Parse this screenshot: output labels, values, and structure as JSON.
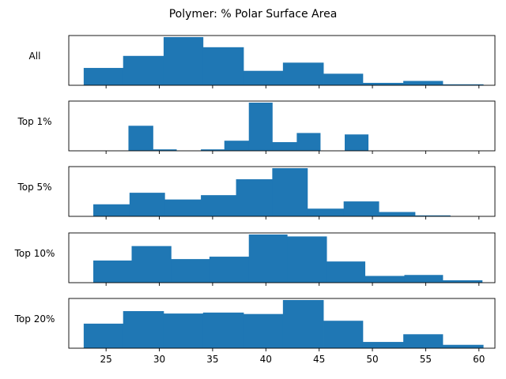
{
  "chart_data": {
    "type": "bar",
    "title": "Polymer: % Polar Surface Area",
    "xlabel": "",
    "ylabel": "",
    "xlim": [
      21.5,
      61.5
    ],
    "xticks": [
      "25",
      "30",
      "35",
      "40",
      "45",
      "50",
      "55",
      "60"
    ],
    "color": "#1f77b4",
    "grid": false,
    "panels": [
      {
        "label": "All",
        "edges": [
          22.9,
          26.6,
          30.4,
          34.1,
          37.9,
          41.6,
          45.4,
          49.1,
          52.9,
          56.6,
          60.4
        ],
        "values": [
          0.36,
          0.61,
          1.0,
          0.79,
          0.3,
          0.47,
          0.24,
          0.05,
          0.09,
          0.02
        ]
      },
      {
        "label": "Top 1%",
        "edges": [
          27.1,
          29.4,
          31.6,
          33.9,
          36.1,
          38.4,
          40.6,
          42.9,
          45.1,
          47.4,
          49.6
        ],
        "values": [
          0.52,
          0.03,
          0.0,
          0.03,
          0.21,
          1.0,
          0.18,
          0.37,
          0.0,
          0.34
        ]
      },
      {
        "label": "Top 5%",
        "edges": [
          23.8,
          27.2,
          30.5,
          33.9,
          37.2,
          40.6,
          43.9,
          47.3,
          50.6,
          54.0,
          57.3
        ],
        "values": [
          0.25,
          0.49,
          0.35,
          0.44,
          0.77,
          1.0,
          0.16,
          0.31,
          0.09,
          0.02
        ]
      },
      {
        "label": "Top 10%",
        "edges": [
          23.8,
          27.4,
          31.1,
          34.7,
          38.4,
          42.0,
          45.7,
          49.3,
          53.0,
          56.6,
          60.3
        ],
        "values": [
          0.46,
          0.76,
          0.49,
          0.54,
          1.0,
          0.96,
          0.44,
          0.14,
          0.16,
          0.05
        ]
      },
      {
        "label": "Top 20%",
        "edges": [
          22.9,
          26.6,
          30.4,
          34.1,
          37.9,
          41.6,
          45.4,
          49.1,
          52.9,
          56.6,
          60.4
        ],
        "values": [
          0.51,
          0.77,
          0.72,
          0.74,
          0.71,
          1.0,
          0.57,
          0.13,
          0.29,
          0.07
        ]
      }
    ]
  }
}
